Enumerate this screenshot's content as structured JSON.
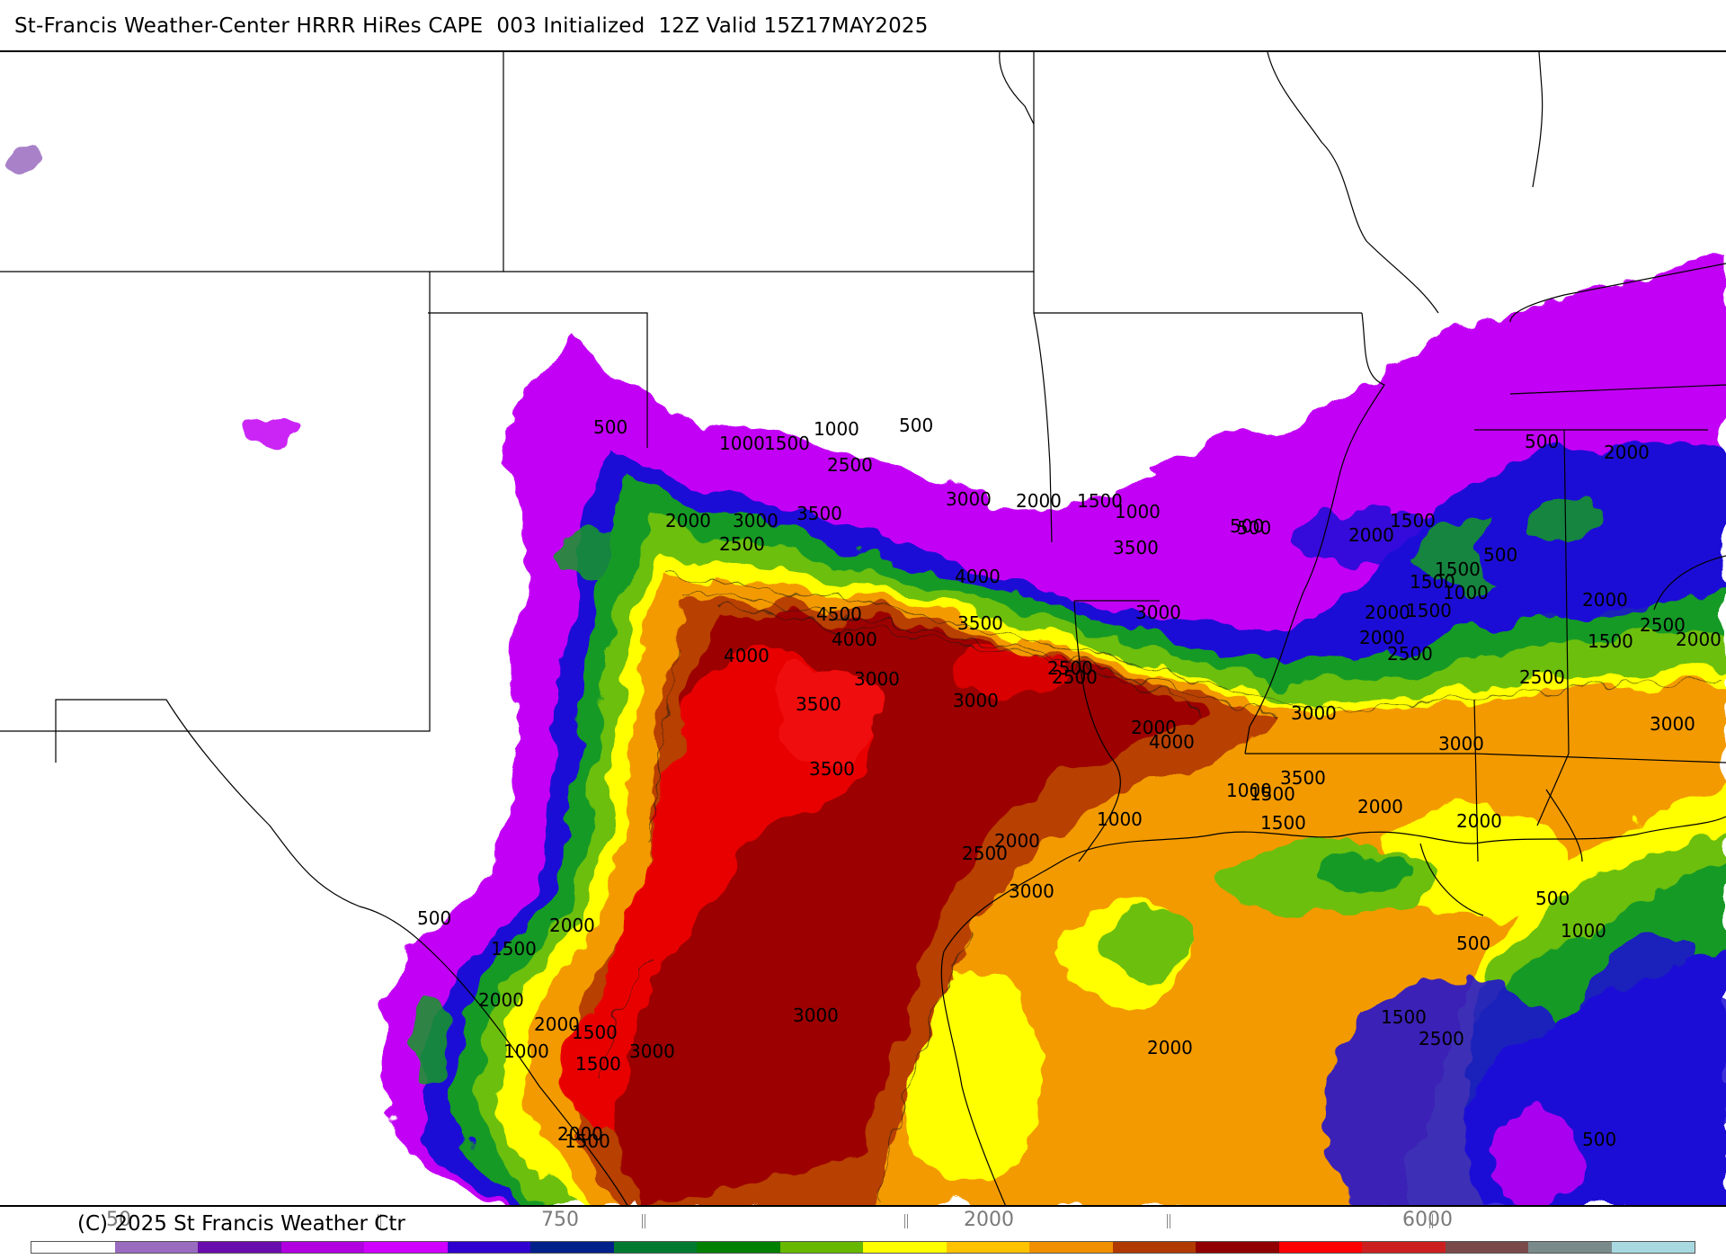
{
  "title": "St-Francis Weather-Center HRRR HiRes CAPE  003 Initialized  12Z Valid 15Z17MAY2025",
  "copyright": "(C) 2025 St Francis Weather Ctr",
  "colorbar": {
    "tick_labels": [
      "50",
      "750",
      "2000",
      "6000"
    ],
    "colors": [
      "#ffffff",
      "#9a6cc0",
      "#6a0dad",
      "#b000e0",
      "#d000ff",
      "#3000d0",
      "#00208a",
      "#007a30",
      "#008000",
      "#66b800",
      "#ffff00",
      "#ffc200",
      "#f09000",
      "#b03a00",
      "#900000",
      "#ff0000",
      "#cc2020",
      "#7a4a4a",
      "#7a8a8a",
      "#a8d8e0"
    ]
  },
  "legend": {
    "cape_levels": [
      500,
      1000,
      1500,
      2000,
      2500,
      3000,
      3500,
      4000,
      4500
    ]
  },
  "contour_labels": [
    "500",
    "1000",
    "1500",
    "2000",
    "2500",
    "3000",
    "3500",
    "4000",
    "4500"
  ],
  "map_labels": [
    {
      "text": "500"
    },
    {
      "text": "1000"
    },
    {
      "text": "1500"
    },
    {
      "text": "1000"
    },
    {
      "text": "500"
    },
    {
      "text": "2500"
    },
    {
      "text": "3000"
    },
    {
      "text": "2000"
    },
    {
      "text": "1500"
    },
    {
      "text": "1000"
    },
    {
      "text": "3500"
    },
    {
      "text": "2000"
    },
    {
      "text": "3000"
    },
    {
      "text": "2500"
    },
    {
      "text": "500"
    },
    {
      "text": "4000"
    },
    {
      "text": "4500"
    },
    {
      "text": "4000"
    },
    {
      "text": "3500"
    },
    {
      "text": "4000"
    },
    {
      "text": "3000"
    },
    {
      "text": "3500"
    },
    {
      "text": "3000"
    },
    {
      "text": "3500"
    },
    {
      "text": "3500"
    },
    {
      "text": "2500"
    },
    {
      "text": "3000"
    },
    {
      "text": "2500"
    },
    {
      "text": "2000"
    },
    {
      "text": "500"
    },
    {
      "text": "1500"
    },
    {
      "text": "2000"
    },
    {
      "text": "1500"
    },
    {
      "text": "2000"
    },
    {
      "text": "2500"
    },
    {
      "text": "2000"
    },
    {
      "text": "1500"
    },
    {
      "text": "500"
    },
    {
      "text": "1000"
    },
    {
      "text": "2000"
    },
    {
      "text": "1500"
    },
    {
      "text": "2500"
    },
    {
      "text": "2000"
    },
    {
      "text": "3000"
    },
    {
      "text": "3000"
    },
    {
      "text": "3500"
    },
    {
      "text": "4000"
    },
    {
      "text": "1500"
    },
    {
      "text": "1000"
    },
    {
      "text": "2500"
    },
    {
      "text": "3000"
    },
    {
      "text": "2000"
    },
    {
      "text": "500"
    },
    {
      "text": "2000"
    },
    {
      "text": "1500"
    },
    {
      "text": "2500"
    },
    {
      "text": "3000"
    },
    {
      "text": "2000"
    },
    {
      "text": "2000"
    },
    {
      "text": "1000"
    },
    {
      "text": "1500"
    },
    {
      "text": "500"
    },
    {
      "text": "500"
    },
    {
      "text": "1000"
    },
    {
      "text": "500"
    },
    {
      "text": "500"
    },
    {
      "text": "1500"
    },
    {
      "text": "2000"
    },
    {
      "text": "2000"
    },
    {
      "text": "2000"
    },
    {
      "text": "1500"
    },
    {
      "text": "1000"
    },
    {
      "text": "2000"
    },
    {
      "text": "1500"
    },
    {
      "text": "2500"
    },
    {
      "text": "2000"
    },
    {
      "text": "3000"
    },
    {
      "text": "1500"
    },
    {
      "text": "1500"
    },
    {
      "text": "3000"
    }
  ]
}
